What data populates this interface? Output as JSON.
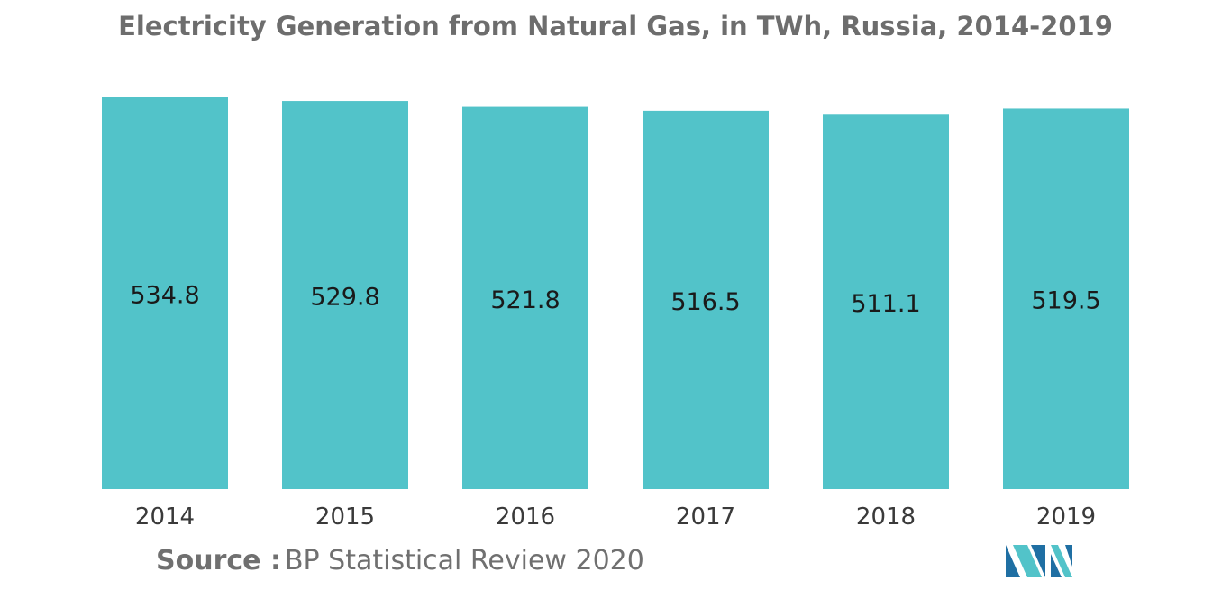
{
  "chart_data": {
    "type": "bar",
    "title": "Electricity Generation from Natural Gas, in TWh, Russia, 2014-2019",
    "categories": [
      "2014",
      "2015",
      "2016",
      "2017",
      "2018",
      "2019"
    ],
    "values": [
      534.8,
      529.8,
      521.8,
      516.5,
      511.1,
      519.5
    ],
    "value_labels": [
      "534.8",
      "529.8",
      "521.8",
      "516.5",
      "511.1",
      "519.5"
    ],
    "xlabel": "",
    "ylabel": "",
    "ylim": [
      0,
      545
    ],
    "grid": false,
    "legend": "none",
    "bar_color": "#52c3c9"
  },
  "source": {
    "label": "Source :",
    "text": "BP Statistical Review 2020"
  },
  "logo": {
    "icon": "mordor-intelligence-logo-icon",
    "colors": [
      "#1f6fa3",
      "#52c3c9"
    ]
  }
}
